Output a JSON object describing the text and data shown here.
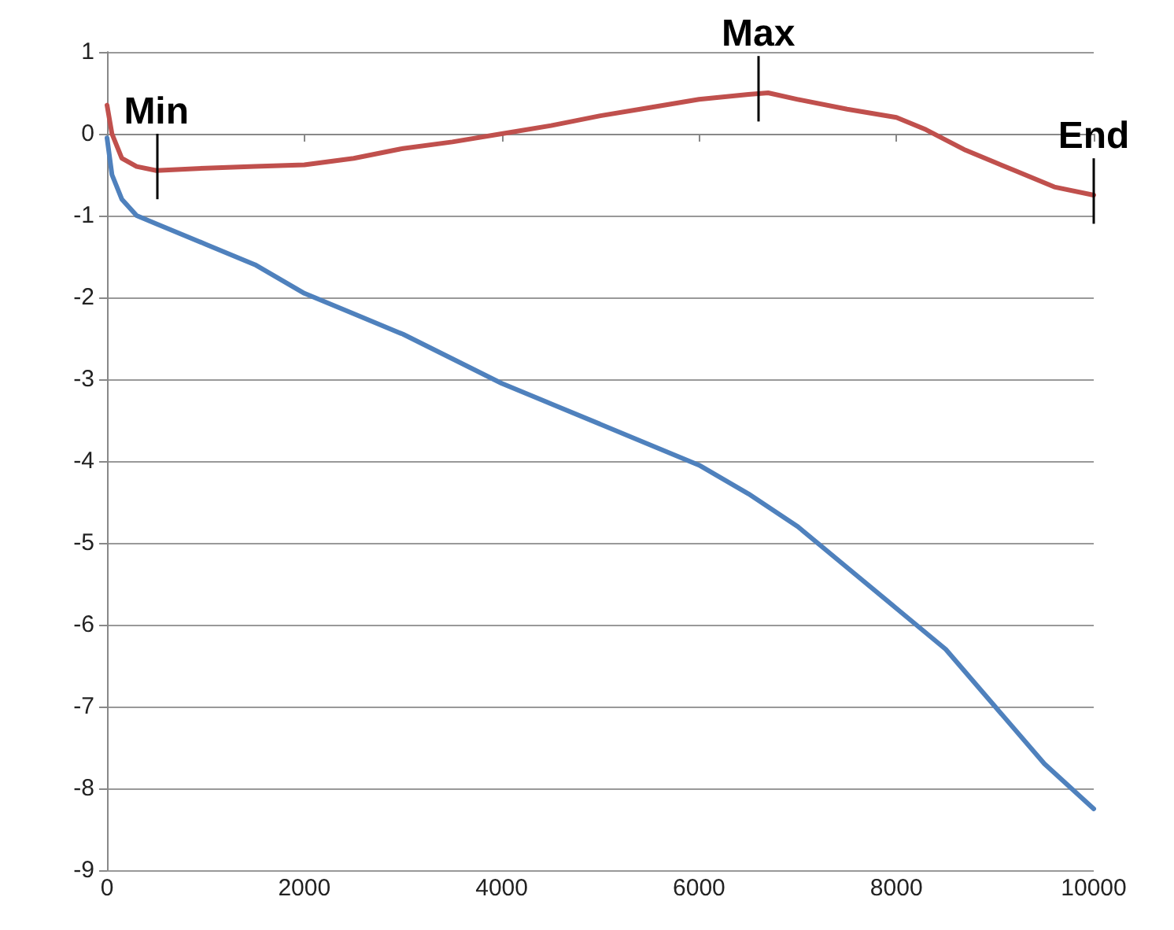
{
  "chart_data": {
    "type": "line",
    "x": [
      0,
      50,
      150,
      300,
      500,
      1000,
      1500,
      2000,
      2500,
      3000,
      3500,
      4000,
      4500,
      5000,
      5500,
      6000,
      6500,
      6700,
      7000,
      7500,
      8000,
      8300,
      8700,
      9200,
      9600,
      10000
    ],
    "series": [
      {
        "color": "#c0504d",
        "values": [
          0.35,
          0.0,
          -0.3,
          -0.4,
          -0.45,
          -0.42,
          -0.4,
          -0.38,
          -0.3,
          -0.18,
          -0.1,
          0.0,
          0.1,
          0.22,
          0.32,
          0.42,
          0.48,
          0.5,
          0.42,
          0.3,
          0.2,
          0.05,
          -0.2,
          -0.45,
          -0.65,
          -0.75
        ]
      },
      {
        "color": "#4f81bd",
        "x": [
          0,
          50,
          150,
          300,
          500,
          1000,
          1500,
          2000,
          2500,
          3000,
          3500,
          4000,
          4500,
          5000,
          5500,
          6000,
          6500,
          7000,
          7500,
          8000,
          8500,
          9000,
          9500,
          10000
        ],
        "values": [
          -0.05,
          -0.5,
          -0.8,
          -1.0,
          -1.1,
          -1.35,
          -1.6,
          -1.95,
          -2.2,
          -2.45,
          -2.75,
          -3.05,
          -3.3,
          -3.55,
          -3.8,
          -4.05,
          -4.4,
          -4.8,
          -5.3,
          -5.8,
          -6.3,
          -7.0,
          -7.7,
          -8.25
        ]
      }
    ],
    "xlim": [
      0,
      10000
    ],
    "xticks": [
      0,
      2000,
      4000,
      6000,
      8000,
      10000
    ],
    "ylim": [
      -9,
      1
    ],
    "yticks": [
      -9,
      -8,
      -7,
      -6,
      -5,
      -4,
      -3,
      -2,
      -1,
      0,
      1
    ],
    "grid": "y",
    "marker": "none",
    "line_style": "solid",
    "annotations": [
      {
        "text": "Min",
        "x": 500,
        "y": -0.45
      },
      {
        "text": "Max",
        "x": 6600,
        "y": 0.5
      },
      {
        "text": "End",
        "x": 10000,
        "y": -0.75
      }
    ]
  }
}
